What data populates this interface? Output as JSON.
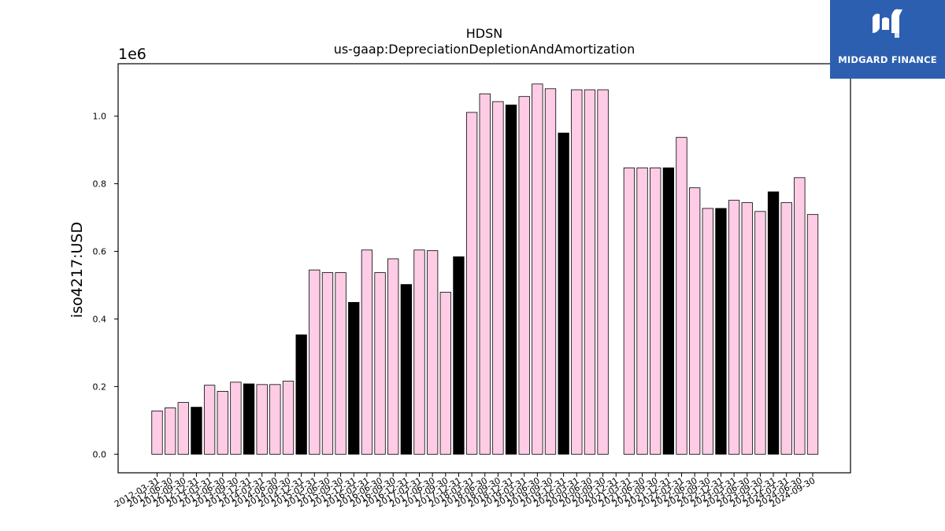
{
  "brand": {
    "name": "MIDGARD FINANCE",
    "logo_icon": "midgard-m-logo-icon",
    "background": "#2d5fb0"
  },
  "chart_data": {
    "type": "bar",
    "title": "HDSN",
    "subtitle": "us-gaap:DepreciationDepletionAndAmortization",
    "xlabel": "",
    "ylabel": "iso4217:USD",
    "offset_label": "1e6",
    "ylim": [
      -0.055,
      1.155
    ],
    "yticks": [
      0.0,
      0.2,
      0.4,
      0.6,
      0.8,
      1.0
    ],
    "ytick_labels": [
      "0.0",
      "0.2",
      "0.4",
      "0.6",
      "0.8",
      "1.0"
    ],
    "grid": false,
    "legend": "none",
    "colors": {
      "quarter": "#ffcce6",
      "fiscal_year": "#000000",
      "edge": "#000000"
    },
    "categories": [
      "2012-03-31",
      "2012-06-30",
      "2012-09-30",
      "2012-12-31",
      "2013-03-31",
      "2013-06-30",
      "2013-09-30",
      "2013-12-31",
      "2014-03-31",
      "2014-06-30",
      "2014-09-30",
      "2014-12-31",
      "2015-03-31",
      "2015-06-30",
      "2015-09-30",
      "2015-12-31",
      "2016-03-31",
      "2016-06-30",
      "2016-09-30",
      "2016-12-31",
      "2017-03-31",
      "2017-06-30",
      "2017-09-30",
      "2017-12-31",
      "2018-03-31",
      "2018-06-30",
      "2018-09-30",
      "2018-12-31",
      "2019-03-31",
      "2019-06-30",
      "2019-09-30",
      "2019-12-31",
      "2020-03-31",
      "2020-06-30",
      "2020-09-30",
      "2020-12-31",
      "2021-03-31",
      "2021-06-30",
      "2021-09-30",
      "2021-12-31",
      "2022-03-31",
      "2022-06-30",
      "2022-09-30",
      "2022-12-31",
      "2023-03-31",
      "2023-06-30",
      "2023-09-30",
      "2023-12-31",
      "2024-03-31",
      "2024-06-30",
      "2024-09-30"
    ],
    "values": [
      0.128,
      0.137,
      0.153,
      0.139,
      0.204,
      0.186,
      0.213,
      0.208,
      0.206,
      0.206,
      0.216,
      0.353,
      0.545,
      0.537,
      0.537,
      0.449,
      0.604,
      0.537,
      0.578,
      0.502,
      0.604,
      0.602,
      0.479,
      0.584,
      1.011,
      1.066,
      1.043,
      1.033,
      1.058,
      1.095,
      1.081,
      0.95,
      1.078,
      1.078,
      1.078,
      0.0,
      0.847,
      0.847,
      0.847,
      0.847,
      0.937,
      0.788,
      0.727,
      0.727,
      0.751,
      0.744,
      0.718,
      0.776,
      0.744,
      0.818,
      0.709
    ],
    "bar_color_keys": [
      "quarter",
      "quarter",
      "quarter",
      "fiscal_year",
      "quarter",
      "quarter",
      "quarter",
      "fiscal_year",
      "quarter",
      "quarter",
      "quarter",
      "fiscal_year",
      "quarter",
      "quarter",
      "quarter",
      "fiscal_year",
      "quarter",
      "quarter",
      "quarter",
      "fiscal_year",
      "quarter",
      "quarter",
      "quarter",
      "fiscal_year",
      "quarter",
      "quarter",
      "quarter",
      "fiscal_year",
      "quarter",
      "quarter",
      "quarter",
      "fiscal_year",
      "quarter",
      "quarter",
      "quarter",
      "fiscal_year",
      "quarter",
      "quarter",
      "quarter",
      "fiscal_year",
      "quarter",
      "quarter",
      "quarter",
      "fiscal_year",
      "quarter",
      "quarter",
      "quarter",
      "fiscal_year",
      "quarter",
      "quarter",
      "quarter"
    ]
  }
}
